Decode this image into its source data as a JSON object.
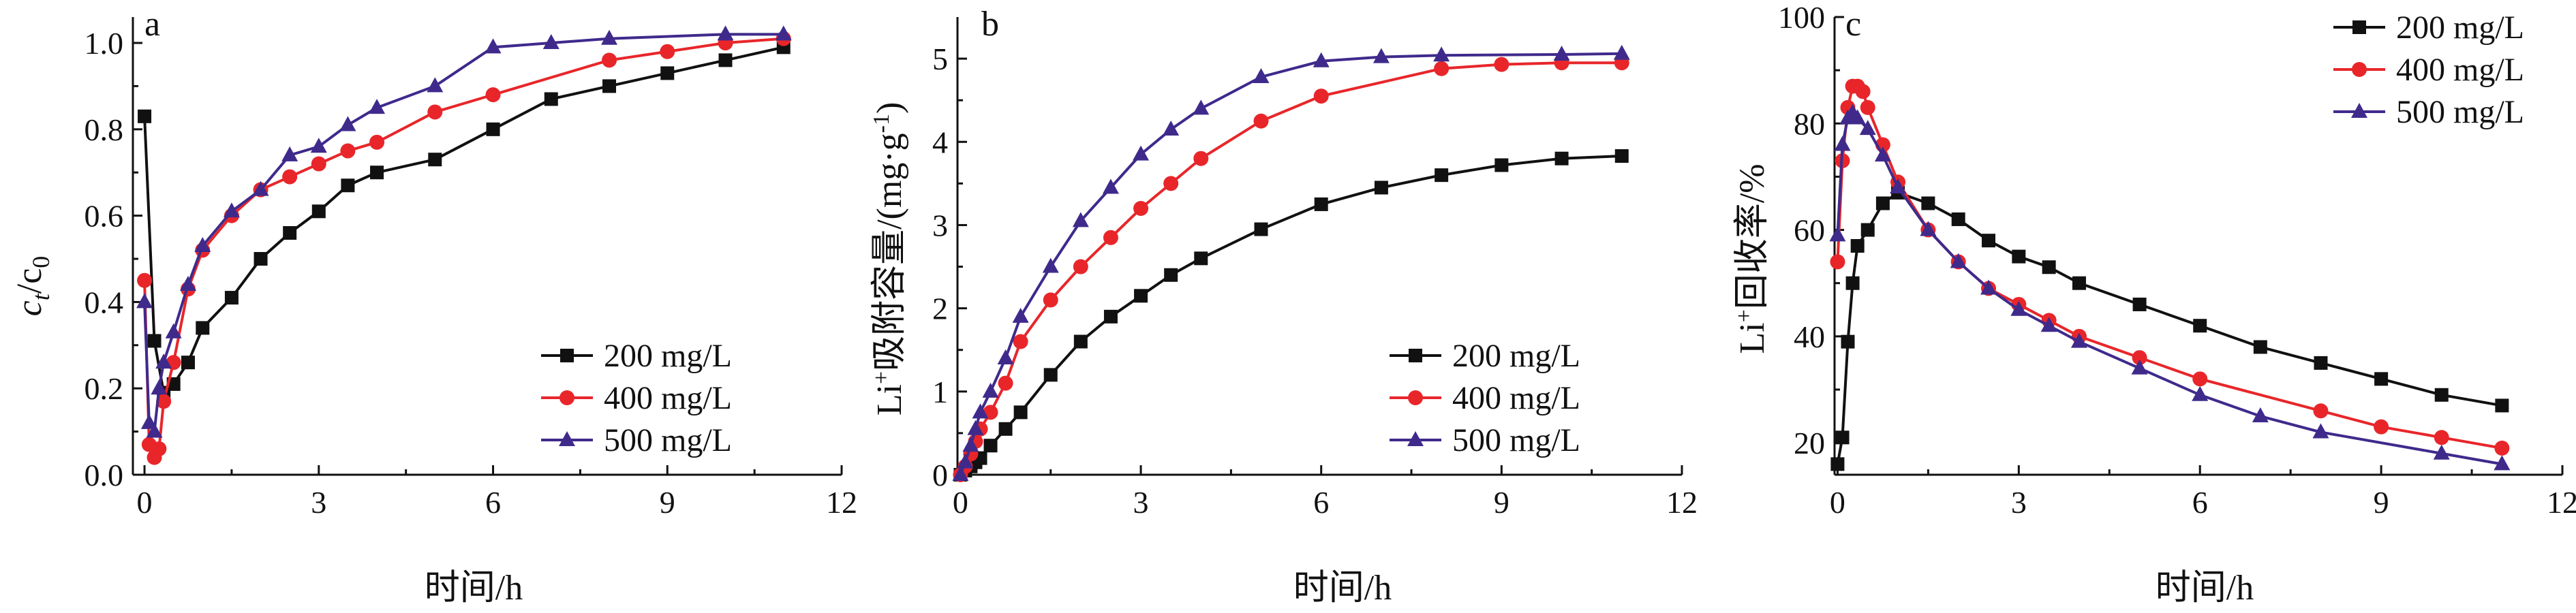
{
  "colors": {
    "s200": "#111111",
    "s400": "#e8262a",
    "s500": "#3f2a8c"
  },
  "chart_data": [
    {
      "type": "line",
      "panel_label": "a",
      "xlabel": "时间/h",
      "ylabel_main": "c",
      "ylabel_sub": "t",
      "ylabel_mid": "/c",
      "ylabel_sub2": "0",
      "xlim": [
        -0.2,
        12
      ],
      "ylim": [
        0,
        1.06
      ],
      "xticks": [
        0,
        3,
        6,
        9,
        12
      ],
      "yticks": [
        0.0,
        0.2,
        0.4,
        0.6,
        0.8,
        1.0
      ],
      "ytick_labels": [
        "0.0",
        "0.2",
        "0.4",
        "0.6",
        "0.8",
        "1.0"
      ],
      "legend_position": "bottom-right",
      "series": [
        {
          "name": "200 mg/L",
          "marker": "square",
          "x": [
            0,
            0.17,
            0.33,
            0.5,
            0.75,
            1,
            1.5,
            2,
            2.5,
            3,
            3.5,
            4,
            5,
            6,
            7,
            8,
            9,
            10,
            11
          ],
          "y": [
            0.83,
            0.31,
            0.19,
            0.21,
            0.26,
            0.34,
            0.41,
            0.5,
            0.56,
            0.61,
            0.67,
            0.7,
            0.73,
            0.8,
            0.87,
            0.9,
            0.93,
            0.96,
            0.99
          ]
        },
        {
          "name": "400 mg/L",
          "marker": "circle",
          "x": [
            0,
            0.08,
            0.17,
            0.25,
            0.33,
            0.5,
            0.75,
            1,
            1.5,
            2,
            2.5,
            3,
            3.5,
            4,
            5,
            6,
            8,
            9,
            10,
            11
          ],
          "y": [
            0.45,
            0.07,
            0.04,
            0.06,
            0.17,
            0.26,
            0.43,
            0.52,
            0.6,
            0.66,
            0.69,
            0.72,
            0.75,
            0.77,
            0.84,
            0.88,
            0.96,
            0.98,
            1.0,
            1.01
          ]
        },
        {
          "name": "500 mg/L",
          "marker": "triangle",
          "x": [
            0,
            0.08,
            0.17,
            0.25,
            0.33,
            0.5,
            0.75,
            1,
            1.5,
            2,
            2.5,
            3,
            3.5,
            4,
            5,
            6,
            7,
            8,
            10,
            11
          ],
          "y": [
            0.4,
            0.12,
            0.1,
            0.2,
            0.26,
            0.33,
            0.44,
            0.53,
            0.61,
            0.66,
            0.74,
            0.76,
            0.81,
            0.85,
            0.9,
            0.99,
            1.0,
            1.01,
            1.02,
            1.02
          ]
        }
      ]
    },
    {
      "type": "line",
      "panel_label": "b",
      "xlabel": "时间/h",
      "ylabel_prefix": "Li",
      "ylabel_sup": "+",
      "ylabel_rest": "吸附容量/(mg·g",
      "ylabel_sup2": "-1",
      "ylabel_end": ")",
      "xlim": [
        -0.05,
        12
      ],
      "ylim": [
        0,
        5.5
      ],
      "xticks": [
        0,
        3,
        6,
        9,
        12
      ],
      "yticks": [
        0,
        1,
        2,
        3,
        4,
        5
      ],
      "ytick_labels": [
        "0",
        "1",
        "2",
        "3",
        "4",
        "5"
      ],
      "legend_position": "bottom-right",
      "series": [
        {
          "name": "200 mg/L",
          "marker": "square",
          "x": [
            0,
            0.08,
            0.17,
            0.25,
            0.33,
            0.5,
            0.75,
            1,
            1.5,
            2,
            2.5,
            3,
            3.5,
            4,
            5,
            6,
            7,
            8,
            9,
            10,
            11
          ],
          "y": [
            0,
            0.05,
            0.1,
            0.15,
            0.2,
            0.35,
            0.55,
            0.75,
            1.2,
            1.6,
            1.9,
            2.15,
            2.4,
            2.6,
            2.95,
            3.25,
            3.45,
            3.6,
            3.72,
            3.8,
            3.83
          ]
        },
        {
          "name": "400 mg/L",
          "marker": "circle",
          "x": [
            0,
            0.08,
            0.17,
            0.25,
            0.33,
            0.5,
            0.75,
            1,
            1.5,
            2,
            2.5,
            3,
            3.5,
            4,
            5,
            6,
            8,
            9,
            10,
            11
          ],
          "y": [
            0,
            0.1,
            0.25,
            0.4,
            0.55,
            0.75,
            1.1,
            1.6,
            2.1,
            2.5,
            2.85,
            3.2,
            3.5,
            3.8,
            4.25,
            4.55,
            4.88,
            4.93,
            4.95,
            4.95
          ]
        },
        {
          "name": "500 mg/L",
          "marker": "triangle",
          "x": [
            0,
            0.08,
            0.17,
            0.25,
            0.33,
            0.5,
            0.75,
            1,
            1.5,
            2,
            2.5,
            3,
            3.5,
            4,
            5,
            6,
            7,
            8,
            10,
            11
          ],
          "y": [
            0,
            0.15,
            0.35,
            0.55,
            0.75,
            1.0,
            1.4,
            1.9,
            2.5,
            3.05,
            3.45,
            3.85,
            4.15,
            4.4,
            4.78,
            4.97,
            5.02,
            5.04,
            5.05,
            5.06
          ]
        }
      ]
    },
    {
      "type": "line",
      "panel_label": "c",
      "xlabel": "时间/h",
      "ylabel_prefix": "Li",
      "ylabel_sup": "+",
      "ylabel_rest": "回收率/%",
      "xlim": [
        -0.05,
        12
      ],
      "ylim": [
        14,
        100
      ],
      "xticks": [
        0,
        3,
        6,
        9,
        12
      ],
      "yticks": [
        20,
        40,
        60,
        80,
        100
      ],
      "ytick_labels": [
        "20",
        "40",
        "60",
        "80",
        "100"
      ],
      "legend_position": "top-right",
      "series": [
        {
          "name": "200 mg/L",
          "marker": "square",
          "x": [
            0,
            0.08,
            0.17,
            0.25,
            0.33,
            0.5,
            0.75,
            1,
            1.5,
            2,
            2.5,
            3,
            3.5,
            4,
            5,
            6,
            7,
            8,
            9,
            10,
            11
          ],
          "y": [
            16,
            21,
            39,
            50,
            57,
            60,
            65,
            67,
            65,
            62,
            58,
            55,
            53,
            50,
            46,
            42,
            38,
            35,
            32,
            29,
            27
          ]
        },
        {
          "name": "400 mg/L",
          "marker": "circle",
          "x": [
            0,
            0.08,
            0.17,
            0.25,
            0.33,
            0.42,
            0.5,
            0.75,
            1,
            1.5,
            2,
            2.5,
            3,
            3.5,
            4,
            5,
            6,
            8,
            9,
            10,
            11
          ],
          "y": [
            54,
            73,
            83,
            87,
            87,
            86,
            83,
            76,
            69,
            60,
            54,
            49,
            46,
            43,
            40,
            36,
            32,
            26,
            23,
            21,
            19
          ]
        },
        {
          "name": "500 mg/L",
          "marker": "triangle",
          "x": [
            0,
            0.08,
            0.17,
            0.25,
            0.33,
            0.5,
            0.75,
            1,
            1.5,
            2,
            2.5,
            3,
            3.5,
            4,
            5,
            6,
            7,
            8,
            10,
            11
          ],
          "y": [
            59,
            76,
            81,
            82,
            81,
            79,
            74,
            68,
            60,
            54,
            49,
            45,
            42,
            39,
            34,
            29,
            25,
            22,
            18,
            16
          ]
        }
      ]
    }
  ]
}
